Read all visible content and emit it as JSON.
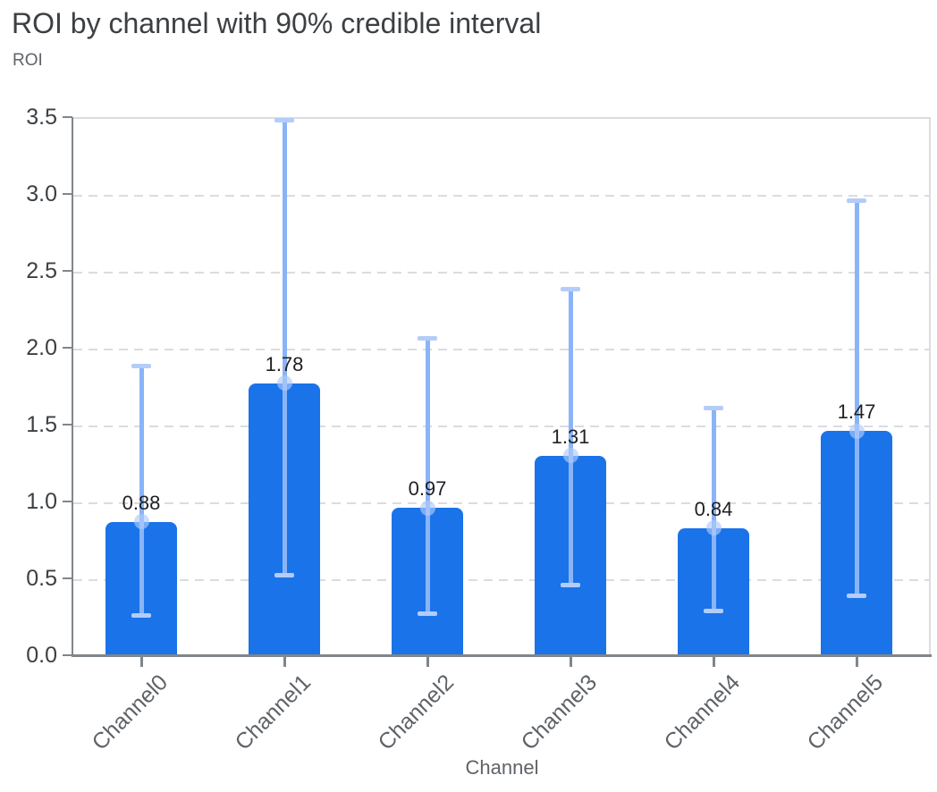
{
  "title": "ROI by channel with 90% credible interval",
  "y_axis_label": "ROI",
  "colors": {
    "bar": "#1a73e8",
    "error_line": "#8ab4f8",
    "error_cap": "#b3ccfa",
    "mean_marker": "rgba(174,203,250,0.65)",
    "grid": "#dadce0",
    "axis": "#80868b",
    "title_text": "#3c4043",
    "subtitle_text": "#5f6368",
    "value_text": "#1f2023"
  },
  "chart_data": {
    "type": "bar",
    "title": "ROI by channel with 90% credible interval",
    "xlabel": "Channel",
    "ylabel": "ROI",
    "categories": [
      "Channel0",
      "Channel1",
      "Channel2",
      "Channel3",
      "Channel4",
      "Channel5"
    ],
    "values": [
      0.88,
      1.78,
      0.97,
      1.31,
      0.84,
      1.47
    ],
    "value_labels": [
      "0.88",
      "1.78",
      "0.97",
      "1.31",
      "0.84",
      "1.47"
    ],
    "ci_low": [
      0.27,
      0.53,
      0.28,
      0.47,
      0.3,
      0.4
    ],
    "ci_high": [
      1.89,
      3.49,
      2.07,
      2.39,
      1.62,
      2.97
    ],
    "ci_level": "90%",
    "ylim": [
      0,
      3.5
    ],
    "y_ticks": [
      0.0,
      0.5,
      1.0,
      1.5,
      2.0,
      2.5,
      3.0,
      3.5
    ],
    "y_tick_labels": [
      "0.0",
      "0.5",
      "1.0",
      "1.5",
      "2.0",
      "2.5",
      "3.0",
      "3.5"
    ],
    "grid": true,
    "grid_style": "dashed-horizontal",
    "legend": false
  }
}
